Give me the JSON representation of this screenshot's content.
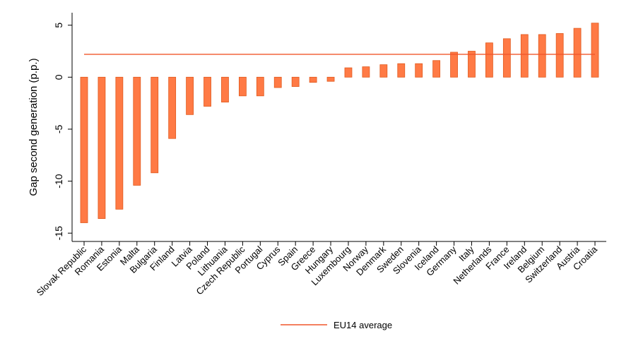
{
  "chart_data": {
    "type": "bar",
    "ylabel": "Gap second generation (p.p.)",
    "ylim": [
      -15.8,
      6.2
    ],
    "yticks": [
      5,
      0,
      -5,
      -10,
      -15
    ],
    "categories": [
      "Slovak Republic",
      "Romania",
      "Estonia",
      "Malta",
      "Bulgaria",
      "Finland",
      "Latvia",
      "Poland",
      "Lithuania",
      "Czech Republic",
      "Portugal",
      "Cyprus",
      "Spain",
      "Greece",
      "Hungary",
      "Luxembourg",
      "Norway",
      "Denmark",
      "Sweden",
      "Slovenia",
      "Iceland",
      "Germany",
      "Italy",
      "Netherlands",
      "France",
      "Ireland",
      "Belgium",
      "Switzerland",
      "Austria",
      "Croatia"
    ],
    "values": [
      -14.0,
      -13.6,
      -12.7,
      -10.4,
      -9.2,
      -5.9,
      -3.6,
      -2.8,
      -2.4,
      -1.8,
      -1.8,
      -1.0,
      -0.9,
      -0.5,
      -0.4,
      0.9,
      1.0,
      1.2,
      1.3,
      1.3,
      1.6,
      2.4,
      2.5,
      3.3,
      3.7,
      4.1,
      4.1,
      4.2,
      4.7,
      5.2
    ],
    "reference_line": {
      "name": "EU14 average",
      "value": 2.2
    },
    "legend": {
      "position": "bottom",
      "entries": [
        "EU14 average"
      ]
    },
    "bar_color": "#ff7a45",
    "bar_border_color": "#e05a1e",
    "line_color": "#f0562a"
  }
}
